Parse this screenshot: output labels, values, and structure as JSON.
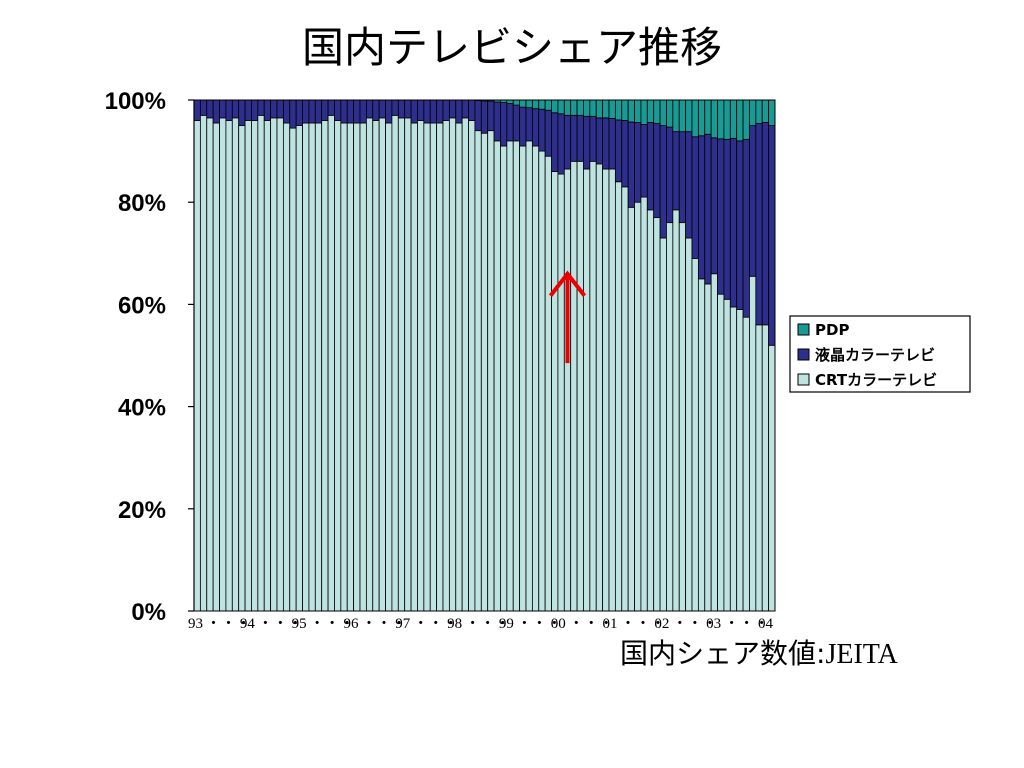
{
  "slide": {
    "title": "国内テレビシェア推移",
    "source_label": "国内シェア数値:",
    "source_org": "JEITA"
  },
  "colors": {
    "crt": "#bfe3e0",
    "lcd": "#2e2e8c",
    "pdp": "#1a9a94",
    "arrow": "#ee0000"
  },
  "chart_data": {
    "type": "bar",
    "stacked": true,
    "ylim": [
      0,
      100
    ],
    "yticks": [
      "0%",
      "20%",
      "40%",
      "60%",
      "80%",
      "100%"
    ],
    "xtick_labels": [
      "93",
      "94",
      "95",
      "96",
      "97",
      "98",
      "99",
      "00",
      "01",
      "02",
      "03",
      "04"
    ],
    "xtick_separator": "・・・",
    "grid": false,
    "legend_position": "right",
    "annotation": {
      "type": "arrow",
      "direction": "up",
      "x_index": 58,
      "from_value": 48.5,
      "to_value": 66
    },
    "series": [
      {
        "name": "CRTカラーテレビ",
        "color": "#bfe3e0",
        "values": [
          96,
          97,
          96.5,
          95.5,
          96.5,
          96,
          96.5,
          95,
          96,
          96,
          97,
          96,
          96.5,
          96.5,
          95.5,
          94.5,
          95,
          95.5,
          95.5,
          95.5,
          96,
          97,
          96,
          95.5,
          95.5,
          95.5,
          95.5,
          96.5,
          96,
          96.5,
          95.5,
          97,
          96.5,
          96.5,
          95.5,
          96,
          95.5,
          95.5,
          95.5,
          96,
          96.5,
          95.5,
          96.5,
          96,
          94,
          93.5,
          94,
          92,
          91,
          92,
          92,
          91,
          92,
          91,
          90,
          89,
          86,
          85.5,
          86.5,
          88,
          88,
          86.5,
          88,
          87.5,
          86.5,
          86.5,
          84,
          83,
          79,
          80,
          81,
          78.5,
          77,
          73,
          76,
          78.5,
          76,
          73,
          69,
          65,
          64,
          66,
          62,
          61,
          59.5,
          59,
          57.5,
          65.5,
          56,
          56,
          52
        ]
      },
      {
        "name": "液晶カラーテレビ",
        "color": "#2e2e8c",
        "values": [
          4,
          3,
          3.5,
          4.5,
          3.5,
          4,
          3.5,
          5,
          4,
          4,
          3,
          4,
          3.5,
          3.5,
          4.5,
          5.5,
          5,
          4.5,
          4.5,
          4.5,
          4,
          3,
          4,
          4.5,
          4.5,
          4.5,
          4.5,
          3.5,
          4,
          3.5,
          4.5,
          3,
          3.5,
          3.5,
          4.5,
          4,
          4.5,
          4.5,
          4.5,
          4,
          3.5,
          4.5,
          3.5,
          4,
          5.9,
          6.3,
          5.8,
          7.6,
          8.5,
          7.3,
          7,
          7.6,
          6.5,
          7.3,
          8.2,
          9,
          11.5,
          11.8,
          10.5,
          9,
          9,
          10.3,
          8.8,
          9,
          10,
          9.9,
          12.1,
          13,
          16.7,
          15.6,
          14.2,
          17.1,
          18.4,
          22,
          18.7,
          15.3,
          17.8,
          20.8,
          23.8,
          28,
          29.3,
          26.6,
          30.4,
          31.3,
          33,
          33,
          34.8,
          29.5,
          39.4,
          39.6,
          43
        ]
      },
      {
        "name": "PDP",
        "color": "#1a9a94",
        "values": [
          0,
          0,
          0,
          0,
          0,
          0,
          0,
          0,
          0,
          0,
          0,
          0,
          0,
          0,
          0,
          0,
          0,
          0,
          0,
          0,
          0,
          0,
          0,
          0,
          0,
          0,
          0,
          0,
          0,
          0,
          0,
          0,
          0,
          0,
          0,
          0,
          0,
          0,
          0,
          0,
          0,
          0,
          0,
          0,
          0.1,
          0.2,
          0.2,
          0.4,
          0.5,
          0.7,
          1,
          1.4,
          1.5,
          1.7,
          1.8,
          2,
          2.5,
          2.7,
          3,
          3,
          3,
          3.2,
          3.2,
          3.5,
          3.5,
          3.6,
          3.9,
          4,
          4.3,
          4.4,
          4.8,
          4.4,
          4.6,
          5,
          5.3,
          6.2,
          6.2,
          6.2,
          7.2,
          7,
          6.7,
          7.4,
          7.6,
          7.7,
          7.5,
          8,
          7.7,
          5,
          4.6,
          4.4,
          5
        ]
      }
    ]
  }
}
